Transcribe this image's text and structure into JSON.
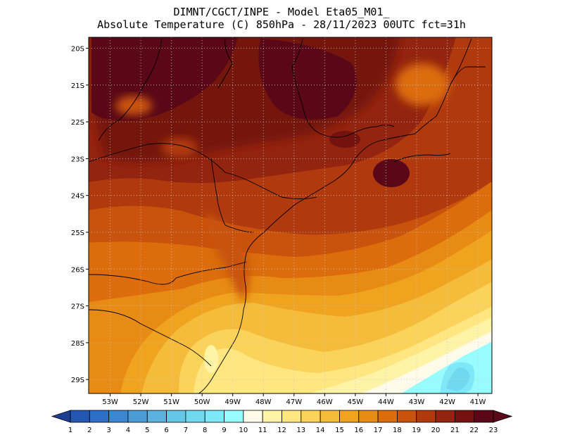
{
  "header": {
    "line1": "DIMNT/CGCT/INPE -  Model Eta05_M01_",
    "line2": "Absolute Temperature (C) 850hPa -  28/11/2023 00UTC fct=31h"
  },
  "map": {
    "lat_ticks": [
      "20S",
      "21S",
      "22S",
      "23S",
      "24S",
      "25S",
      "26S",
      "27S",
      "28S",
      "29S"
    ],
    "lon_ticks": [
      "53W",
      "52W",
      "51W",
      "50W",
      "49W",
      "48W",
      "47W",
      "46W",
      "45W",
      "44W",
      "43W",
      "42W",
      "41W"
    ]
  },
  "colorbar": {
    "labels": [
      "1",
      "2",
      "3",
      "4",
      "5",
      "6",
      "7",
      "8",
      "9",
      "10",
      "11",
      "12",
      "13",
      "14",
      "15",
      "16",
      "17",
      "18",
      "19",
      "20",
      "21",
      "22",
      "23"
    ],
    "colors": [
      "#1c3f94",
      "#2457b0",
      "#2d6ec6",
      "#3d86d0",
      "#4a9bd6",
      "#5bb1df",
      "#66c6e8",
      "#71d8f0",
      "#7ee8f8",
      "#98fcff",
      "#fffbea",
      "#fff3a8",
      "#ffe680",
      "#fbd35a",
      "#f4bc3a",
      "#efa31f",
      "#e88b14",
      "#dc6c0c",
      "#c9520c",
      "#b03a0e",
      "#93240f",
      "#741210",
      "#5a0818"
    ]
  }
}
